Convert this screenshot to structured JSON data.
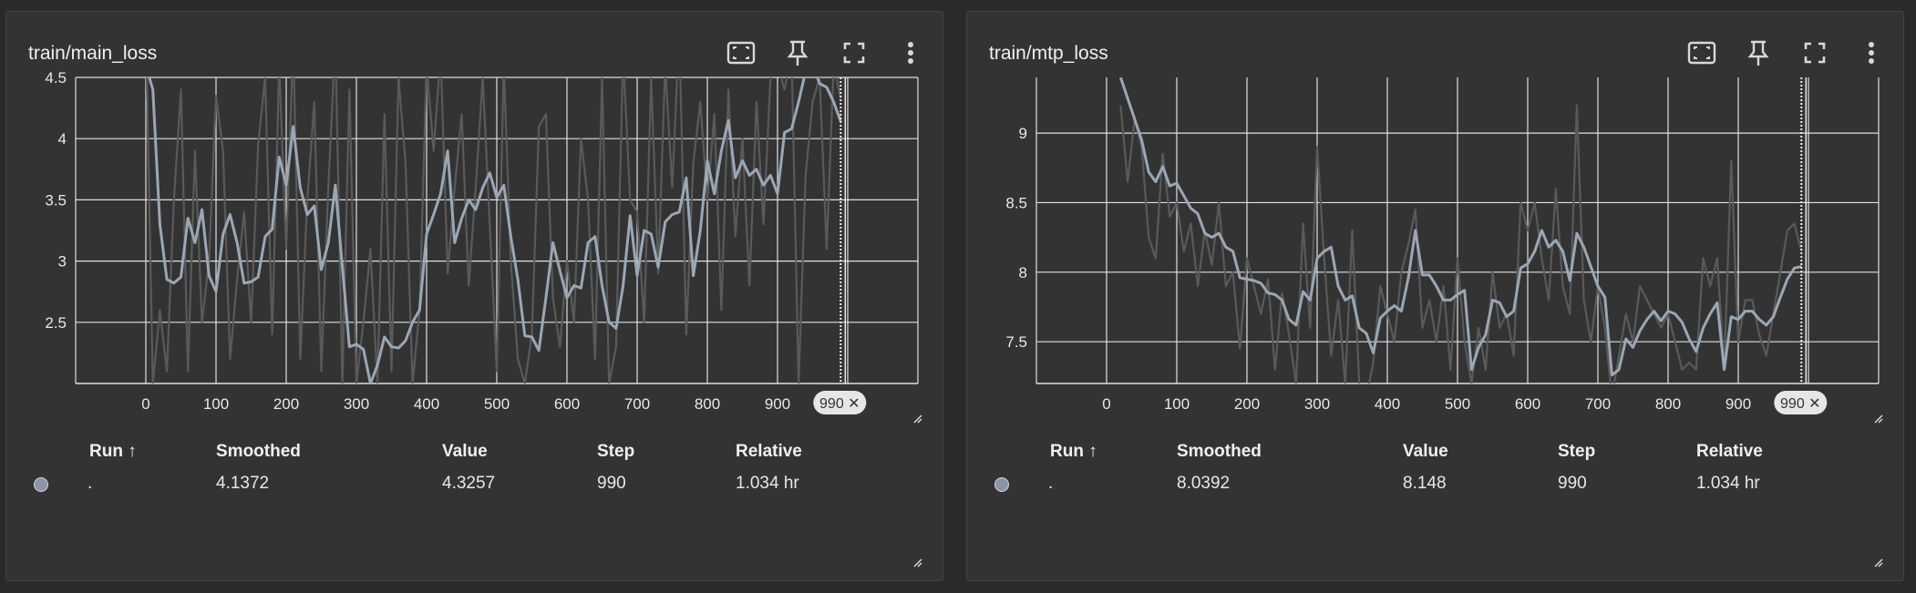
{
  "colors": {
    "background": "#2a2a2a",
    "card": "#333333",
    "grid": "#e0e0e0",
    "smoothed": "#9aa7b6",
    "raw": "#5a5a5a",
    "run_dot": "#8a96a6"
  },
  "icons": [
    "fit-domain-icon",
    "pin-icon",
    "fullscreen-icon",
    "more-vert-icon"
  ],
  "cards": [
    {
      "title": "train/main_loss",
      "table": {
        "headers": {
          "run": "Run ↑",
          "smoothed": "Smoothed",
          "value": "Value",
          "step": "Step",
          "relative": "Relative"
        },
        "row": {
          "run": ".",
          "smoothed": "4.1372",
          "value": "4.3257",
          "step": "990",
          "relative": "1.034 hr"
        }
      },
      "hover_label": "990 ✕"
    },
    {
      "title": "train/mtp_loss",
      "table": {
        "headers": {
          "run": "Run ↑",
          "smoothed": "Smoothed",
          "value": "Value",
          "step": "Step",
          "relative": "Relative"
        },
        "row": {
          "run": ".",
          "smoothed": "8.0392",
          "value": "8.148",
          "step": "990",
          "relative": "1.034 hr"
        }
      },
      "hover_label": "990 ✕"
    }
  ],
  "chart_data": [
    {
      "type": "line",
      "title": "train/main_loss",
      "xlim": [
        -100,
        1100
      ],
      "ylim": [
        2,
        4.5
      ],
      "xticks": [
        0,
        100,
        200,
        300,
        400,
        500,
        600,
        700,
        800,
        900
      ],
      "xtick_labels": [
        "0",
        "100",
        "200",
        "300",
        "400",
        "500",
        "600",
        "700",
        "800",
        "900"
      ],
      "yticks": [
        2.5,
        3,
        3.5,
        4,
        4.5
      ],
      "ytick_labels": [
        "2.5",
        "3",
        "3.5",
        "4",
        "4.5"
      ],
      "grid": true,
      "cursor_step": 990,
      "series": [
        {
          "kind": "smoothed",
          "x": [
            0,
            10,
            20,
            30,
            40,
            50,
            60,
            70,
            80,
            90,
            100,
            110,
            120,
            130,
            140,
            150,
            160,
            170,
            180,
            190,
            200,
            210,
            220,
            230,
            240,
            250,
            260,
            270,
            280,
            290,
            300,
            310,
            320,
            330,
            340,
            350,
            360,
            370,
            380,
            390,
            400,
            410,
            420,
            430,
            440,
            450,
            460,
            470,
            480,
            490,
            500,
            510,
            520,
            530,
            540,
            550,
            560,
            570,
            580,
            590,
            600,
            610,
            620,
            630,
            640,
            650,
            660,
            670,
            680,
            690,
            700,
            710,
            720,
            730,
            740,
            750,
            760,
            770,
            780,
            790,
            800,
            810,
            820,
            830,
            840,
            850,
            860,
            870,
            880,
            890,
            900,
            910,
            920,
            930,
            940,
            950,
            960,
            970,
            980,
            990
          ],
          "y": [
            4.6,
            4.4,
            3.3,
            2.85,
            2.82,
            2.87,
            3.35,
            3.15,
            3.42,
            2.88,
            2.75,
            3.22,
            3.38,
            3.15,
            2.82,
            2.83,
            2.87,
            3.2,
            3.26,
            3.85,
            3.62,
            4.1,
            3.6,
            3.38,
            3.45,
            2.93,
            3.15,
            3.62,
            2.95,
            2.3,
            2.32,
            2.28,
            2.0,
            2.15,
            2.38,
            2.3,
            2.29,
            2.35,
            2.5,
            2.6,
            3.22,
            3.38,
            3.55,
            3.9,
            3.15,
            3.35,
            3.5,
            3.42,
            3.6,
            3.72,
            3.52,
            3.62,
            3.2,
            2.85,
            2.39,
            2.38,
            2.27,
            2.7,
            3.15,
            2.92,
            2.7,
            2.8,
            2.78,
            3.15,
            3.2,
            2.8,
            2.5,
            2.45,
            2.8,
            3.37,
            2.88,
            3.25,
            3.22,
            2.95,
            3.32,
            3.38,
            3.4,
            3.68,
            2.88,
            3.25,
            3.82,
            3.55,
            3.9,
            4.15,
            3.68,
            3.82,
            3.7,
            3.75,
            3.62,
            3.7,
            3.55,
            4.05,
            4.08,
            4.3,
            4.55,
            4.6,
            4.45,
            4.42,
            4.3,
            4.14
          ]
        },
        {
          "kind": "raw",
          "x": [
            0,
            10,
            20,
            30,
            40,
            50,
            60,
            70,
            80,
            90,
            100,
            110,
            120,
            130,
            140,
            150,
            160,
            170,
            180,
            190,
            200,
            210,
            220,
            230,
            240,
            250,
            260,
            270,
            280,
            290,
            300,
            310,
            320,
            330,
            340,
            350,
            360,
            370,
            380,
            390,
            400,
            410,
            420,
            430,
            440,
            450,
            460,
            470,
            480,
            490,
            500,
            510,
            520,
            530,
            540,
            550,
            560,
            570,
            580,
            590,
            600,
            610,
            620,
            630,
            640,
            650,
            660,
            670,
            680,
            690,
            700,
            710,
            720,
            730,
            740,
            750,
            760,
            770,
            780,
            790,
            800,
            810,
            820,
            830,
            840,
            850,
            860,
            870,
            880,
            890,
            900,
            910,
            920,
            930,
            940,
            950,
            960,
            970,
            980,
            990
          ],
          "y": [
            4.9,
            2.0,
            2.6,
            2.1,
            3.5,
            4.4,
            2.1,
            3.9,
            2.5,
            3.0,
            4.35,
            3.9,
            2.2,
            2.85,
            3.4,
            2.5,
            3.95,
            4.5,
            2.4,
            4.6,
            3.1,
            4.8,
            2.2,
            3.5,
            4.3,
            2.1,
            3.6,
            4.8,
            2.0,
            4.4,
            2.0,
            2.5,
            3.1,
            2.0,
            4.2,
            2.1,
            4.5,
            3.8,
            2.0,
            2.6,
            4.6,
            3.9,
            4.7,
            2.9,
            3.6,
            4.2,
            2.8,
            3.6,
            4.5,
            3.3,
            2.1,
            4.6,
            3.0,
            2.2,
            2.0,
            2.4,
            4.1,
            4.2,
            2.7,
            2.3,
            3.0,
            2.5,
            4.0,
            3.5,
            2.2,
            4.5,
            2.0,
            2.3,
            4.7,
            3.5,
            3.4,
            2.5,
            4.5,
            2.9,
            4.6,
            3.6,
            4.9,
            2.4,
            3.8,
            4.3,
            3.5,
            4.2,
            2.6,
            4.4,
            3.2,
            4.0,
            2.8,
            4.3,
            3.3,
            4.5,
            4.6,
            4.4,
            4.7,
            2.0,
            3.7,
            4.3,
            4.5,
            3.1,
            4.6,
            4.33
          ]
        }
      ]
    },
    {
      "type": "line",
      "title": "train/mtp_loss",
      "xlim": [
        -100,
        1100
      ],
      "ylim": [
        7.2,
        9.4
      ],
      "xticks": [
        0,
        100,
        200,
        300,
        400,
        500,
        600,
        700,
        800,
        900
      ],
      "xtick_labels": [
        "0",
        "100",
        "200",
        "300",
        "400",
        "500",
        "600",
        "700",
        "800",
        "900"
      ],
      "yticks": [
        7.5,
        8,
        8.5,
        9
      ],
      "ytick_labels": [
        "7.5",
        "8",
        "8.5",
        "9"
      ],
      "grid": true,
      "cursor_step": 990,
      "series": [
        {
          "kind": "smoothed",
          "x": [
            20,
            30,
            40,
            50,
            60,
            70,
            80,
            90,
            100,
            110,
            120,
            130,
            140,
            150,
            160,
            170,
            180,
            190,
            200,
            210,
            220,
            230,
            240,
            250,
            260,
            270,
            280,
            290,
            300,
            310,
            320,
            330,
            340,
            350,
            360,
            370,
            380,
            390,
            400,
            410,
            420,
            430,
            440,
            450,
            460,
            470,
            480,
            490,
            500,
            510,
            520,
            530,
            540,
            550,
            560,
            570,
            580,
            590,
            600,
            610,
            620,
            630,
            640,
            650,
            660,
            670,
            680,
            690,
            700,
            710,
            720,
            730,
            740,
            750,
            760,
            770,
            780,
            790,
            800,
            810,
            820,
            830,
            840,
            850,
            860,
            870,
            880,
            890,
            900,
            910,
            920,
            930,
            940,
            950,
            960,
            970,
            980,
            990
          ],
          "y": [
            9.4,
            9.25,
            9.1,
            8.95,
            8.72,
            8.65,
            8.76,
            8.62,
            8.64,
            8.55,
            8.46,
            8.42,
            8.28,
            8.25,
            8.28,
            8.18,
            8.15,
            7.96,
            7.95,
            7.94,
            7.92,
            7.85,
            7.84,
            7.8,
            7.66,
            7.62,
            7.86,
            7.8,
            8.1,
            8.15,
            8.18,
            7.9,
            7.8,
            7.83,
            7.6,
            7.56,
            7.42,
            7.67,
            7.72,
            7.76,
            7.72,
            7.96,
            8.3,
            7.98,
            7.98,
            7.9,
            7.8,
            7.8,
            7.84,
            7.87,
            7.3,
            7.46,
            7.55,
            7.8,
            7.78,
            7.68,
            7.72,
            8.03,
            8.06,
            8.15,
            8.3,
            8.18,
            8.23,
            8.15,
            7.94,
            8.28,
            8.18,
            8.04,
            7.9,
            7.82,
            7.26,
            7.3,
            7.52,
            7.46,
            7.58,
            7.66,
            7.72,
            7.65,
            7.72,
            7.7,
            7.64,
            7.52,
            7.43,
            7.6,
            7.7,
            7.78,
            7.3,
            7.68,
            7.66,
            7.72,
            7.72,
            7.66,
            7.62,
            7.68,
            7.82,
            7.95,
            8.03,
            8.04
          ]
        },
        {
          "kind": "raw",
          "x": [
            20,
            30,
            40,
            50,
            60,
            70,
            80,
            90,
            100,
            110,
            120,
            130,
            140,
            150,
            160,
            170,
            180,
            190,
            200,
            210,
            220,
            230,
            240,
            250,
            260,
            270,
            280,
            290,
            300,
            310,
            320,
            330,
            340,
            350,
            360,
            370,
            380,
            390,
            400,
            410,
            420,
            430,
            440,
            450,
            460,
            470,
            480,
            490,
            500,
            510,
            520,
            530,
            540,
            550,
            560,
            570,
            580,
            590,
            600,
            610,
            620,
            630,
            640,
            650,
            660,
            670,
            680,
            690,
            700,
            710,
            720,
            730,
            740,
            750,
            760,
            770,
            780,
            790,
            800,
            810,
            820,
            830,
            840,
            850,
            860,
            870,
            880,
            890,
            900,
            910,
            920,
            930,
            940,
            950,
            960,
            970,
            980,
            990
          ],
          "y": [
            9.2,
            8.65,
            9.1,
            8.9,
            8.25,
            8.1,
            8.85,
            8.4,
            8.5,
            8.15,
            8.35,
            7.9,
            8.3,
            8.05,
            8.5,
            7.9,
            8.0,
            7.45,
            8.1,
            7.9,
            7.7,
            7.95,
            7.3,
            7.85,
            7.55,
            7.2,
            8.35,
            7.6,
            8.9,
            8.1,
            7.4,
            7.8,
            7.2,
            8.3,
            7.2,
            7.1,
            7.35,
            7.9,
            7.7,
            7.5,
            8.0,
            8.2,
            8.45,
            7.6,
            7.8,
            7.5,
            7.9,
            7.3,
            8.1,
            7.5,
            7.2,
            7.6,
            7.3,
            8.0,
            7.6,
            7.7,
            7.4,
            8.5,
            8.3,
            8.5,
            8.1,
            7.8,
            8.6,
            7.9,
            7.7,
            9.2,
            7.8,
            7.5,
            7.9,
            7.6,
            7.1,
            7.4,
            7.7,
            7.5,
            7.9,
            7.8,
            7.7,
            7.6,
            7.7,
            7.5,
            7.3,
            7.35,
            7.3,
            8.1,
            7.9,
            8.1,
            7.3,
            8.8,
            7.5,
            7.8,
            7.8,
            7.55,
            7.4,
            7.7,
            8.0,
            8.3,
            8.35,
            8.15
          ]
        }
      ]
    }
  ]
}
